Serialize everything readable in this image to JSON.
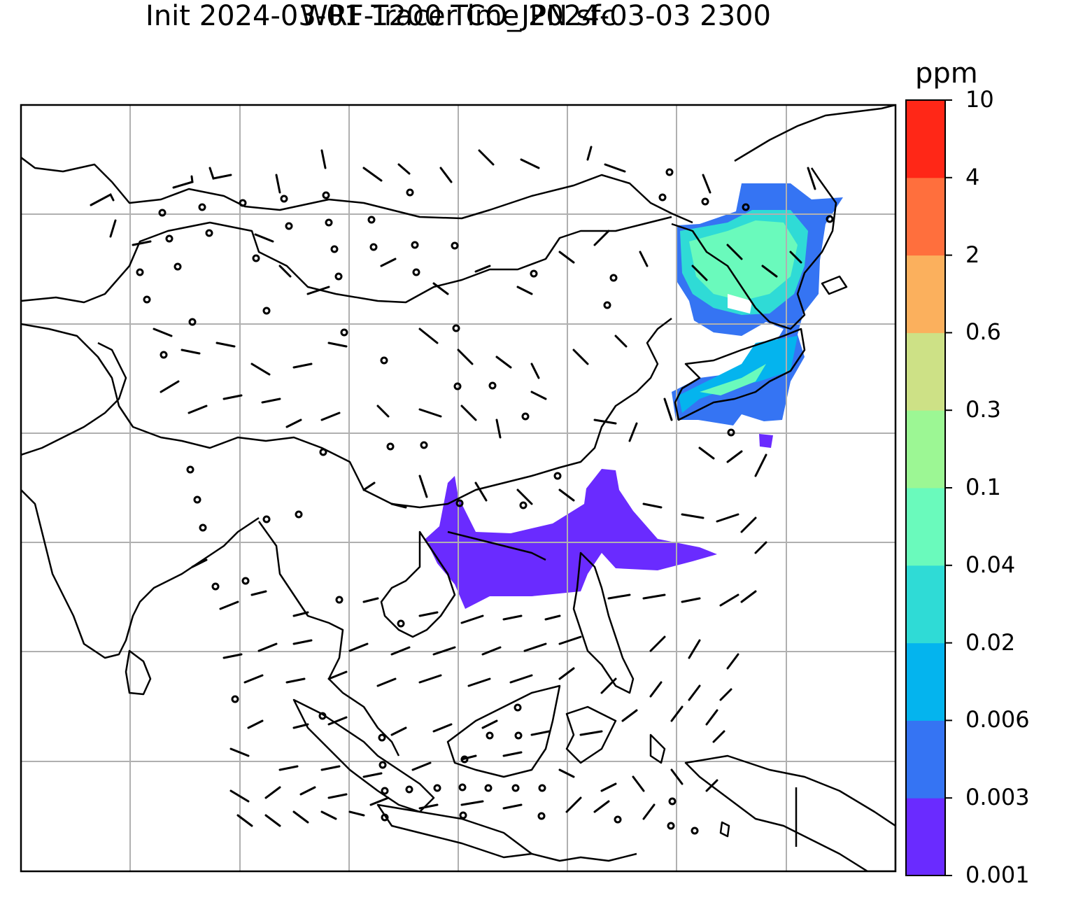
{
  "title": {
    "line1": "WRF-Tracer CO_JPN sfc",
    "line2": "Init 2024-03-01 1200 Time 2024-03-03 2300"
  },
  "colorbar": {
    "unit": "ppm",
    "levels": [
      "0.001",
      "0.003",
      "0.006",
      "0.02",
      "0.04",
      "0.1",
      "0.3",
      "0.6",
      "2",
      "4",
      "10"
    ],
    "colors": [
      "#6a2bff",
      "#3574f3",
      "#04b4ee",
      "#2fdbd6",
      "#6afabc",
      "#9cf794",
      "#cde186",
      "#fbb05d",
      "#ff6f3d",
      "#ff2717"
    ]
  },
  "map": {
    "coastline_color": "#000000",
    "gridline_color": "#b0b0b0",
    "plume_regions": [
      "Japan & Korean peninsula (0.001–0.1 ppm)",
      "South China Sea (0.001–0.003 ppm)"
    ],
    "wind_field": "surface wind barbs (calm circles where no wind)"
  }
}
